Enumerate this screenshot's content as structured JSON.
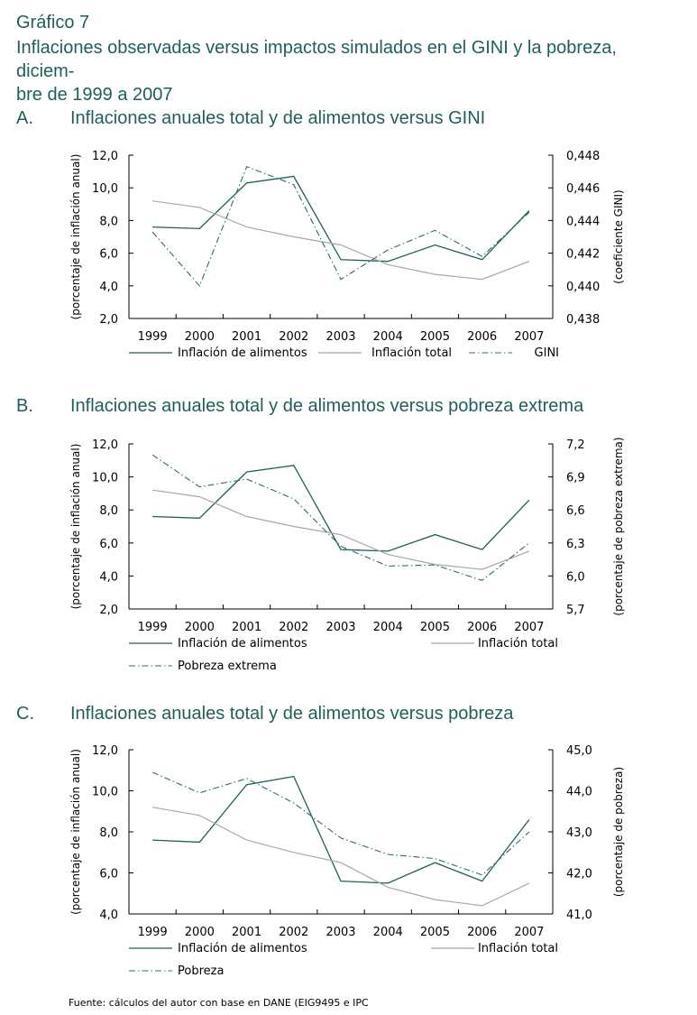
{
  "figure": {
    "label": "Gráfico 7",
    "title_line1": "Inflaciones observadas versus impactos simulados en el GINI y la pobreza, diciem-",
    "title_line2": "bre de 1999 a 2007",
    "source": "Fuente: cálculos del autor con base en DANE (EIG9495 e IPC"
  },
  "colors": {
    "teal": "#1f5f5b",
    "gray": "#a8a8a8",
    "dashdot": "#2e6b6a"
  },
  "chart_data": [
    {
      "letter": "A.",
      "title": "Inflaciones anuales total y de alimentos versus GINI",
      "type": "line",
      "categories": [
        "1999",
        "2000",
        "2001",
        "2002",
        "2003",
        "2004",
        "2005",
        "2006",
        "2007"
      ],
      "ylabel": "(porcentaje de inflación anual)",
      "y2label": "(coeficiente GINI)",
      "ylim": [
        2.0,
        12.0
      ],
      "y2lim": [
        0.438,
        0.448
      ],
      "yticks": [
        "2,0",
        "4,0",
        "6,0",
        "8,0",
        "10,0",
        "12,0"
      ],
      "y2ticks": [
        "0,438",
        "0,440",
        "0,442",
        "0,444",
        "0,446",
        "0,448"
      ],
      "series": [
        {
          "name": "Inflación de alimentos",
          "axis": "left",
          "style": "solid-teal",
          "values": [
            7.6,
            7.5,
            10.3,
            10.7,
            5.6,
            5.5,
            6.5,
            5.6,
            8.6
          ]
        },
        {
          "name": "Inflación total",
          "axis": "left",
          "style": "gray",
          "values": [
            9.2,
            8.8,
            7.6,
            7.0,
            6.5,
            5.3,
            4.7,
            4.4,
            5.5
          ]
        },
        {
          "name": "GINI",
          "axis": "right",
          "style": "dashdot",
          "values": [
            0.4433,
            0.44,
            0.4473,
            0.4462,
            0.4404,
            0.4422,
            0.4434,
            0.4418,
            0.4445
          ]
        }
      ],
      "legend_layout": "row"
    },
    {
      "letter": "B.",
      "title": "Inflaciones anuales total y de alimentos versus pobreza extrema",
      "type": "line",
      "categories": [
        "1999",
        "2000",
        "2001",
        "2002",
        "2003",
        "2004",
        "2005",
        "2006",
        "2007"
      ],
      "ylabel": "(porcentaje de inflación anual)",
      "y2label": "(porcentaje de pobreza extrema)",
      "ylim": [
        2.0,
        12.0
      ],
      "y2lim": [
        5.7,
        7.2
      ],
      "yticks": [
        "2,0",
        "4,0",
        "6,0",
        "8,0",
        "10,0",
        "12,0"
      ],
      "y2ticks": [
        "5,7",
        "6,0",
        "6,3",
        "6,6",
        "6,9",
        "7,2"
      ],
      "series": [
        {
          "name": "Inflación de alimentos",
          "axis": "left",
          "style": "solid-teal",
          "values": [
            7.6,
            7.5,
            10.3,
            10.7,
            5.6,
            5.5,
            6.5,
            5.6,
            8.6
          ]
        },
        {
          "name": "Inflación total",
          "axis": "left",
          "style": "gray",
          "values": [
            9.2,
            8.8,
            7.6,
            7.0,
            6.5,
            5.3,
            4.7,
            4.4,
            5.5
          ]
        },
        {
          "name": "Pobreza extrema",
          "axis": "right",
          "style": "dashdot",
          "values": [
            7.1,
            6.81,
            6.88,
            6.7,
            6.27,
            6.09,
            6.1,
            5.96,
            6.3
          ]
        }
      ],
      "legend_layout": "grid"
    },
    {
      "letter": "C.",
      "title": "Inflaciones anuales total y de alimentos versus pobreza",
      "type": "line",
      "categories": [
        "1999",
        "2000",
        "2001",
        "2002",
        "2003",
        "2004",
        "2005",
        "2006",
        "2007"
      ],
      "ylabel": "(porcentaje de inflación anual)",
      "y2label": "(porcentaje de pobreza)",
      "ylim": [
        4.0,
        12.0
      ],
      "y2lim": [
        41.0,
        45.0
      ],
      "yticks": [
        "4,0",
        "6,0",
        "8,0",
        "10,0",
        "12,0"
      ],
      "y2ticks": [
        "41,0",
        "42,0",
        "43,0",
        "44,0",
        "45,0"
      ],
      "series": [
        {
          "name": "Inflación de alimentos",
          "axis": "left",
          "style": "solid-teal",
          "values": [
            7.6,
            7.5,
            10.3,
            10.7,
            5.6,
            5.5,
            6.5,
            5.6,
            8.6
          ]
        },
        {
          "name": "Inflación total",
          "axis": "left",
          "style": "gray",
          "values": [
            9.2,
            8.8,
            7.6,
            7.0,
            6.5,
            5.3,
            4.7,
            4.4,
            5.5
          ]
        },
        {
          "name": "Pobreza",
          "axis": "right",
          "style": "dashdot",
          "values": [
            44.45,
            43.95,
            44.3,
            43.7,
            42.85,
            42.45,
            42.35,
            41.95,
            43.0
          ]
        }
      ],
      "legend_layout": "grid"
    }
  ]
}
